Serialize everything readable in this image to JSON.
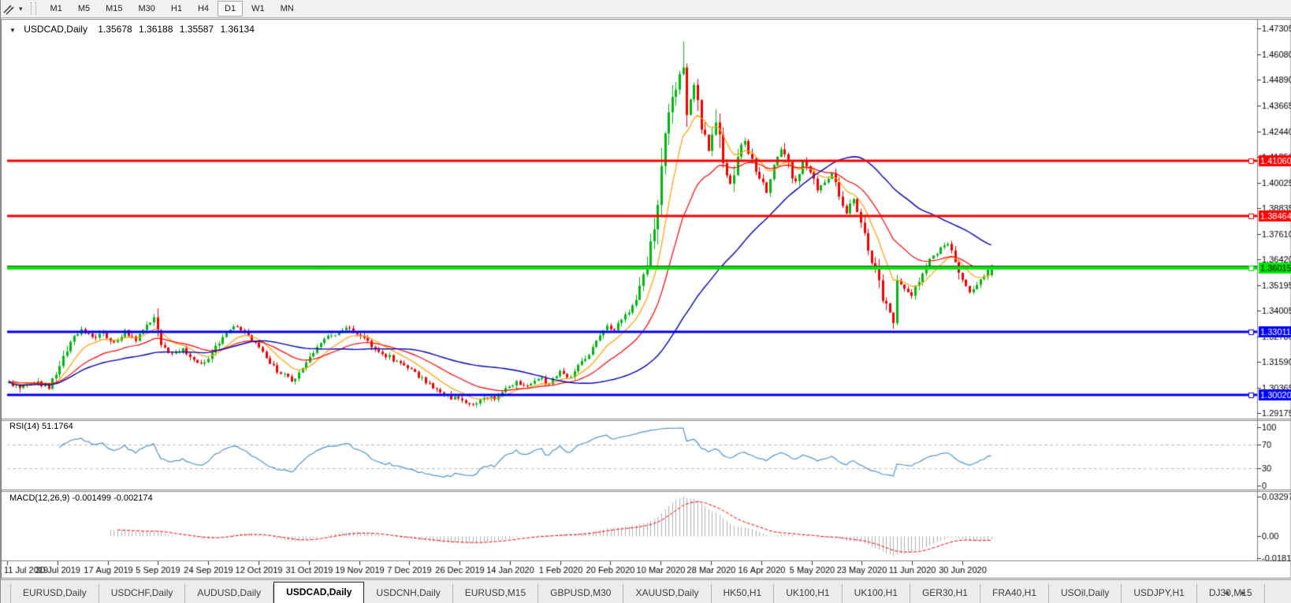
{
  "toolbar": {
    "caret": "▾",
    "timeframes": [
      "M1",
      "M5",
      "M15",
      "M30",
      "H1",
      "H4",
      "D1",
      "W1",
      "MN"
    ],
    "active_timeframe": "D1"
  },
  "chart": {
    "menu_arrow": "▼",
    "title": "USDCAD,Daily",
    "open": "1.35678",
    "high": "1.36188",
    "low": "1.35587",
    "close": "1.36134"
  },
  "chart_data": {
    "type": "candlestick",
    "symbol": "USDCAD",
    "timeframe": "Daily",
    "last_ohlc": {
      "open": 1.35678,
      "high": 1.36188,
      "low": 1.35587,
      "close": 1.36134
    },
    "ylim": [
      1.29175,
      1.4756
    ],
    "price_axis_ticks": [
      "1.47305",
      "1.46080",
      "1.44890",
      "1.43665",
      "1.42440",
      "1.41250",
      "1.40025",
      "1.38835",
      "1.37610",
      "1.36420",
      "1.35195",
      "1.34005",
      "1.32780",
      "1.31590",
      "1.30365",
      "1.29175"
    ],
    "x_labels": [
      "11 Jul 2019",
      "30 Jul 2019",
      "17 Aug 2019",
      "5 Sep 2019",
      "24 Sep 2019",
      "12 Oct 2019",
      "31 Oct 2019",
      "19 Nov 2019",
      "7 Dec 2019",
      "26 Dec 2019",
      "14 Jan 2020",
      "1 Feb 2020",
      "20 Feb 2020",
      "10 Mar 2020",
      "28 Mar 2020",
      "16 Apr 2020",
      "5 May 2020",
      "23 May 2020",
      "11 Jun 2020",
      "30 Jun 2020"
    ],
    "n_candles": 272,
    "close_anchors": [
      [
        0,
        1.306
      ],
      [
        3,
        1.3038
      ],
      [
        7,
        1.3062
      ],
      [
        11,
        1.304
      ],
      [
        14,
        1.313
      ],
      [
        17,
        1.3245
      ],
      [
        20,
        1.332
      ],
      [
        23,
        1.3265
      ],
      [
        26,
        1.3295
      ],
      [
        29,
        1.325
      ],
      [
        32,
        1.33
      ],
      [
        35,
        1.326
      ],
      [
        38,
        1.3335
      ],
      [
        40,
        1.337
      ],
      [
        42,
        1.324
      ],
      [
        45,
        1.319
      ],
      [
        48,
        1.3215
      ],
      [
        51,
        1.317
      ],
      [
        54,
        1.315
      ],
      [
        57,
        1.323
      ],
      [
        60,
        1.329
      ],
      [
        63,
        1.333
      ],
      [
        66,
        1.328
      ],
      [
        69,
        1.322
      ],
      [
        72,
        1.315
      ],
      [
        75,
        1.3105
      ],
      [
        78,
        1.307
      ],
      [
        81,
        1.313
      ],
      [
        84,
        1.321
      ],
      [
        87,
        1.326
      ],
      [
        90,
        1.3295
      ],
      [
        93,
        1.3315
      ],
      [
        96,
        1.329
      ],
      [
        99,
        1.325
      ],
      [
        102,
        1.321
      ],
      [
        105,
        1.318
      ],
      [
        108,
        1.315
      ],
      [
        111,
        1.312
      ],
      [
        114,
        1.308
      ],
      [
        117,
        1.3035
      ],
      [
        120,
        1.3
      ],
      [
        124,
        1.298
      ],
      [
        128,
        1.2962
      ],
      [
        131,
        1.2995
      ],
      [
        134,
        1.2985
      ],
      [
        137,
        1.304
      ],
      [
        140,
        1.306
      ],
      [
        143,
        1.304
      ],
      [
        146,
        1.308
      ],
      [
        149,
        1.3055
      ],
      [
        152,
        1.311
      ],
      [
        155,
        1.309
      ],
      [
        158,
        1.3155
      ],
      [
        161,
        1.322
      ],
      [
        163,
        1.328
      ],
      [
        165,
        1.333
      ],
      [
        167,
        1.331
      ],
      [
        169,
        1.336
      ],
      [
        171,
        1.34
      ],
      [
        173,
        1.345
      ],
      [
        175,
        1.356
      ],
      [
        177,
        1.372
      ],
      [
        179,
        1.395
      ],
      [
        181,
        1.418
      ],
      [
        183,
        1.44
      ],
      [
        185,
        1.452
      ],
      [
        186,
        1.455
      ],
      [
        187,
        1.433
      ],
      [
        189,
        1.446
      ],
      [
        191,
        1.428
      ],
      [
        193,
        1.416
      ],
      [
        195,
        1.428
      ],
      [
        197,
        1.409
      ],
      [
        199,
        1.399
      ],
      [
        201,
        1.413
      ],
      [
        203,
        1.42
      ],
      [
        205,
        1.411
      ],
      [
        207,
        1.402
      ],
      [
        209,
        1.396
      ],
      [
        211,
        1.409
      ],
      [
        213,
        1.417
      ],
      [
        215,
        1.409
      ],
      [
        217,
        1.4
      ],
      [
        219,
        1.411
      ],
      [
        221,
        1.405
      ],
      [
        223,
        1.397
      ],
      [
        225,
        1.401
      ],
      [
        227,
        1.405
      ],
      [
        229,
        1.395
      ],
      [
        231,
        1.386
      ],
      [
        233,
        1.392
      ],
      [
        235,
        1.379
      ],
      [
        237,
        1.369
      ],
      [
        239,
        1.358
      ],
      [
        241,
        1.347
      ],
      [
        243,
        1.338
      ],
      [
        244,
        1.336
      ],
      [
        245,
        1.355
      ],
      [
        247,
        1.351
      ],
      [
        249,
        1.347
      ],
      [
        251,
        1.355
      ],
      [
        253,
        1.361
      ],
      [
        255,
        1.366
      ],
      [
        257,
        1.369
      ],
      [
        259,
        1.3705
      ],
      [
        261,
        1.364
      ],
      [
        263,
        1.355
      ],
      [
        265,
        1.349
      ],
      [
        267,
        1.353
      ],
      [
        269,
        1.356
      ],
      [
        270,
        1.359
      ],
      [
        271,
        1.3613
      ]
    ],
    "pinned_extremes": {
      "highs": [
        [
          186,
          1.4668
        ],
        [
          195,
          1.4349
        ],
        [
          259,
          1.3715
        ],
        [
          40,
          1.3385
        ]
      ],
      "lows": [
        [
          128,
          1.2952
        ],
        [
          244,
          1.3315
        ],
        [
          3,
          1.3015
        ]
      ]
    },
    "levels": [
      {
        "price": 1.4106,
        "label": "1.41060",
        "color": "#ff0000",
        "text_color": "#ffffff",
        "thickness": 3
      },
      {
        "price": 1.38464,
        "label": "1.38464",
        "color": "#ff0000",
        "text_color": "#ffffff",
        "thickness": 3
      },
      {
        "price": 1.36015,
        "label": "1.36015",
        "color": "#00e600",
        "text_color": "#000000",
        "thickness": 4
      },
      {
        "price": 1.33011,
        "label": "1.33011",
        "color": "#0000ff",
        "text_color": "#ffffff",
        "thickness": 3
      },
      {
        "price": 1.3002,
        "label": "1.30020",
        "color": "#0000ff",
        "text_color": "#ffffff",
        "thickness": 3
      }
    ],
    "current_price_line": {
      "price": 1.36134,
      "color": "#3a3a3a"
    },
    "moving_averages": [
      {
        "period": 10,
        "type": "ema",
        "color": "#ff9d00"
      },
      {
        "period": 25,
        "type": "ema",
        "color": "#ff0000"
      },
      {
        "period": 55,
        "type": "sma",
        "color": "#0000bb"
      }
    ],
    "colors": {
      "up": "#00b80f",
      "down": "#f20000",
      "background": "#ffffff",
      "axis_text": "#000000",
      "frame": "#7c7c7c"
    },
    "indicators": [
      {
        "name": "RSI",
        "label": "RSI(14) 51.1764",
        "current": 51.1764,
        "range": [
          0,
          100
        ],
        "levels": [
          30,
          70
        ],
        "axis_ticks": [
          "100",
          "70",
          "30",
          "0"
        ],
        "line_color": "#4f94cd",
        "level_dash_color": "#bdbdbd"
      },
      {
        "name": "MACD",
        "label": "MACD(12,26,9) -0.001499 -0.002174",
        "current_macd": -0.001499,
        "current_signal": -0.002174,
        "range": [
          -0.01815,
          0.032972
        ],
        "axis_ticks": [
          "0.032972",
          "0.00",
          "-0.01815"
        ],
        "histogram_color": "#b0b0b0",
        "signal_color": "#ff0000"
      }
    ]
  },
  "tabs": {
    "scroll_left": "◄",
    "scroll_right": "►",
    "items": [
      {
        "label": "EURUSD,Daily",
        "active": false
      },
      {
        "label": "USDCHF,Daily",
        "active": false
      },
      {
        "label": "AUDUSD,Daily",
        "active": false
      },
      {
        "label": "USDCAD,Daily",
        "active": true
      },
      {
        "label": "USDCNH,Daily",
        "active": false
      },
      {
        "label": "EURUSD,M15",
        "active": false
      },
      {
        "label": "GBPUSD,M30",
        "active": false
      },
      {
        "label": "XAUUSD,Daily",
        "active": false
      },
      {
        "label": "HK50,H1",
        "active": false
      },
      {
        "label": "UK100,H1",
        "active": false
      },
      {
        "label": "UK100,H1",
        "active": false
      },
      {
        "label": "GER30,H1",
        "active": false
      },
      {
        "label": "FRA40,H1",
        "active": false
      },
      {
        "label": "USOil,Daily",
        "active": false
      },
      {
        "label": "USDJPY,H1",
        "active": false
      },
      {
        "label": "DJ30,M15",
        "active": false
      }
    ]
  }
}
